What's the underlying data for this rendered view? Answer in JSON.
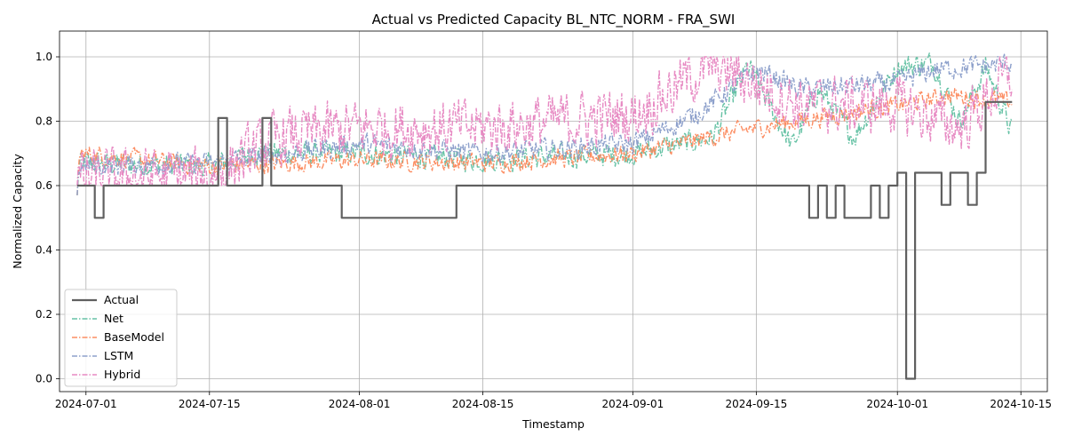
{
  "chart_data": {
    "type": "line",
    "title": "Actual vs Predicted Capacity BL_NTC_NORM - FRA_SWI",
    "xlabel": "Timestamp",
    "ylabel": "Normalized Capacity",
    "x_type": "date",
    "xlim": [
      "2024-06-28",
      "2024-10-18"
    ],
    "ylim": [
      -0.04,
      1.08
    ],
    "x_ticks": [
      "2024-07-01",
      "2024-07-15",
      "2024-08-01",
      "2024-08-15",
      "2024-09-01",
      "2024-09-15",
      "2024-10-01",
      "2024-10-15"
    ],
    "y_ticks": [
      0.0,
      0.2,
      0.4,
      0.6,
      0.8,
      1.0
    ],
    "y_tick_labels": [
      "0.0",
      "0.2",
      "0.4",
      "0.6",
      "0.8",
      "1.0"
    ],
    "grid": true,
    "legend_position": "lower-left",
    "series": [
      {
        "name": "Actual",
        "color": "#606060",
        "style": "solid",
        "step": true,
        "points": [
          [
            "2024-06-30",
            0.6
          ],
          [
            "2024-07-02",
            0.6
          ],
          [
            "2024-07-02",
            0.5
          ],
          [
            "2024-07-03",
            0.5
          ],
          [
            "2024-07-03",
            0.6
          ],
          [
            "2024-07-16",
            0.6
          ],
          [
            "2024-07-16",
            0.81
          ],
          [
            "2024-07-17",
            0.81
          ],
          [
            "2024-07-17",
            0.6
          ],
          [
            "2024-07-21",
            0.6
          ],
          [
            "2024-07-21",
            0.81
          ],
          [
            "2024-07-22",
            0.81
          ],
          [
            "2024-07-22",
            0.6
          ],
          [
            "2024-07-30",
            0.6
          ],
          [
            "2024-07-30",
            0.5
          ],
          [
            "2024-08-12",
            0.5
          ],
          [
            "2024-08-12",
            0.6
          ],
          [
            "2024-09-21",
            0.6
          ],
          [
            "2024-09-21",
            0.5
          ],
          [
            "2024-09-22",
            0.5
          ],
          [
            "2024-09-22",
            0.6
          ],
          [
            "2024-09-23",
            0.6
          ],
          [
            "2024-09-23",
            0.5
          ],
          [
            "2024-09-24",
            0.5
          ],
          [
            "2024-09-24",
            0.6
          ],
          [
            "2024-09-25",
            0.6
          ],
          [
            "2024-09-25",
            0.5
          ],
          [
            "2024-09-28",
            0.5
          ],
          [
            "2024-09-28",
            0.6
          ],
          [
            "2024-09-29",
            0.6
          ],
          [
            "2024-09-29",
            0.5
          ],
          [
            "2024-09-30",
            0.5
          ],
          [
            "2024-09-30",
            0.6
          ],
          [
            "2024-10-01",
            0.6
          ],
          [
            "2024-10-01",
            0.64
          ],
          [
            "2024-10-02",
            0.64
          ],
          [
            "2024-10-02",
            0.0
          ],
          [
            "2024-10-03",
            0.0
          ],
          [
            "2024-10-03",
            0.64
          ],
          [
            "2024-10-06",
            0.64
          ],
          [
            "2024-10-06",
            0.54
          ],
          [
            "2024-10-07",
            0.54
          ],
          [
            "2024-10-07",
            0.64
          ],
          [
            "2024-10-09",
            0.64
          ],
          [
            "2024-10-09",
            0.54
          ],
          [
            "2024-10-10",
            0.54
          ],
          [
            "2024-10-10",
            0.64
          ],
          [
            "2024-10-11",
            0.64
          ],
          [
            "2024-10-11",
            0.86
          ],
          [
            "2024-10-14",
            0.86
          ]
        ]
      },
      {
        "name": "Net",
        "color": "#66c2a5",
        "style": "dashdot",
        "base": [
          [
            "2024-06-30",
            0.67
          ],
          [
            "2024-07-15",
            0.66
          ],
          [
            "2024-07-20",
            0.7
          ],
          [
            "2024-08-01",
            0.7
          ],
          [
            "2024-08-15",
            0.68
          ],
          [
            "2024-09-01",
            0.7
          ],
          [
            "2024-09-10",
            0.75
          ],
          [
            "2024-09-14",
            0.97
          ],
          [
            "2024-09-19",
            0.72
          ],
          [
            "2024-09-22",
            0.9
          ],
          [
            "2024-09-26",
            0.75
          ],
          [
            "2024-10-01",
            0.97
          ],
          [
            "2024-10-05",
            0.98
          ],
          [
            "2024-10-08",
            0.8
          ],
          [
            "2024-10-11",
            0.97
          ],
          [
            "2024-10-14",
            0.76
          ]
        ],
        "noise": 0.05
      },
      {
        "name": "BaseModel",
        "color": "#fc8d62",
        "style": "dashdot",
        "base": [
          [
            "2024-06-30",
            0.7
          ],
          [
            "2024-07-15",
            0.66
          ],
          [
            "2024-08-01",
            0.68
          ],
          [
            "2024-08-15",
            0.67
          ],
          [
            "2024-09-01",
            0.7
          ],
          [
            "2024-09-15",
            0.78
          ],
          [
            "2024-10-01",
            0.85
          ],
          [
            "2024-10-07",
            0.88
          ],
          [
            "2024-10-14",
            0.86
          ]
        ],
        "noise": 0.04
      },
      {
        "name": "LSTM",
        "color": "#8da0cb",
        "style": "dashdot",
        "base": [
          [
            "2024-06-30",
            0.66
          ],
          [
            "2024-07-15",
            0.67
          ],
          [
            "2024-08-01",
            0.73
          ],
          [
            "2024-08-15",
            0.7
          ],
          [
            "2024-09-01",
            0.73
          ],
          [
            "2024-09-08",
            0.82
          ],
          [
            "2024-09-15",
            0.96
          ],
          [
            "2024-09-20",
            0.9
          ],
          [
            "2024-10-01",
            0.92
          ],
          [
            "2024-10-05",
            0.96
          ],
          [
            "2024-10-14",
            0.98
          ]
        ],
        "noise": 0.045
      },
      {
        "name": "Hybrid",
        "color": "#e78ac3",
        "style": "dashdot",
        "base": [
          [
            "2024-06-30",
            0.62
          ],
          [
            "2024-07-15",
            0.63
          ],
          [
            "2024-07-23",
            0.75
          ],
          [
            "2024-08-01",
            0.78
          ],
          [
            "2024-08-15",
            0.78
          ],
          [
            "2024-09-01",
            0.82
          ],
          [
            "2024-09-10",
            0.98
          ],
          [
            "2024-09-20",
            0.85
          ],
          [
            "2024-10-01",
            0.85
          ],
          [
            "2024-10-08",
            0.78
          ],
          [
            "2024-10-14",
            0.95
          ]
        ],
        "noise": 0.12
      }
    ]
  }
}
